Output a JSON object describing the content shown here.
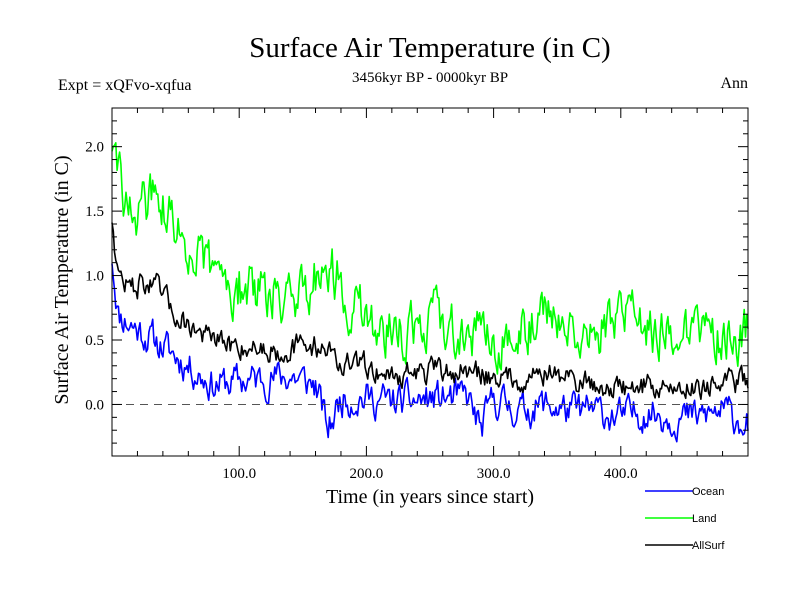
{
  "chart_data": {
    "type": "line",
    "title": "Surface Air Temperature (in C)",
    "subtitle_left": "Expt = xQFvo-xqfua",
    "subtitle_center": "3456kyr BP - 0000kyr BP",
    "subtitle_right": "Ann",
    "xlabel": "Time (in years since start)",
    "ylabel": "Surface Air Temperature (in C)",
    "xlim": [
      0,
      500
    ],
    "ylim": [
      -0.4,
      2.3
    ],
    "xticks": [
      100,
      200,
      300,
      400
    ],
    "xtick_labels": [
      "100.0",
      "200.0",
      "300.0",
      "400.0"
    ],
    "yticks": [
      0.0,
      0.5,
      1.0,
      1.5,
      2.0
    ],
    "ytick_labels": [
      "0.0",
      "0.5",
      "1.0",
      "1.5",
      "2.0"
    ],
    "reference_line": 0.0,
    "legend_position": "bottom-right-outside",
    "series": [
      {
        "name": "Ocean",
        "color": "#0000ff",
        "anchors": [
          [
            0,
            1.15
          ],
          [
            5,
            0.7
          ],
          [
            15,
            0.62
          ],
          [
            25,
            0.55
          ],
          [
            40,
            0.45
          ],
          [
            60,
            0.3
          ],
          [
            80,
            0.15
          ],
          [
            100,
            0.18
          ],
          [
            120,
            0.2
          ],
          [
            140,
            0.22
          ],
          [
            160,
            0.15
          ],
          [
            170,
            -0.2
          ],
          [
            180,
            0.05
          ],
          [
            200,
            0.05
          ],
          [
            220,
            0.02
          ],
          [
            240,
            0.03
          ],
          [
            260,
            0.05
          ],
          [
            280,
            0.05
          ],
          [
            290,
            -0.2
          ],
          [
            300,
            0.05
          ],
          [
            320,
            -0.05
          ],
          [
            340,
            0.0
          ],
          [
            360,
            -0.05
          ],
          [
            380,
            -0.05
          ],
          [
            400,
            -0.1
          ],
          [
            420,
            -0.05
          ],
          [
            440,
            -0.1
          ],
          [
            460,
            -0.1
          ],
          [
            480,
            -0.05
          ],
          [
            500,
            -0.15
          ]
        ]
      },
      {
        "name": "Land",
        "color": "#00ff00",
        "anchors": [
          [
            0,
            2.05
          ],
          [
            5,
            1.75
          ],
          [
            15,
            1.45
          ],
          [
            25,
            1.55
          ],
          [
            35,
            1.65
          ],
          [
            50,
            1.35
          ],
          [
            70,
            1.1
          ],
          [
            90,
            0.95
          ],
          [
            110,
            0.9
          ],
          [
            130,
            0.85
          ],
          [
            150,
            0.9
          ],
          [
            170,
            1.1
          ],
          [
            190,
            0.75
          ],
          [
            210,
            0.6
          ],
          [
            230,
            0.55
          ],
          [
            250,
            0.65
          ],
          [
            270,
            0.6
          ],
          [
            290,
            0.55
          ],
          [
            310,
            0.5
          ],
          [
            330,
            0.65
          ],
          [
            350,
            0.7
          ],
          [
            370,
            0.55
          ],
          [
            390,
            0.6
          ],
          [
            410,
            0.65
          ],
          [
            430,
            0.5
          ],
          [
            450,
            0.55
          ],
          [
            470,
            0.5
          ],
          [
            490,
            0.55
          ],
          [
            500,
            0.6
          ]
        ]
      },
      {
        "name": "AllSurf",
        "color": "#000000",
        "anchors": [
          [
            0,
            1.45
          ],
          [
            5,
            1.0
          ],
          [
            15,
            0.9
          ],
          [
            25,
            0.95
          ],
          [
            35,
            0.9
          ],
          [
            50,
            0.7
          ],
          [
            70,
            0.55
          ],
          [
            90,
            0.45
          ],
          [
            110,
            0.45
          ],
          [
            130,
            0.42
          ],
          [
            150,
            0.45
          ],
          [
            170,
            0.45
          ],
          [
            180,
            0.3
          ],
          [
            200,
            0.3
          ],
          [
            220,
            0.22
          ],
          [
            240,
            0.25
          ],
          [
            260,
            0.25
          ],
          [
            280,
            0.25
          ],
          [
            300,
            0.22
          ],
          [
            320,
            0.2
          ],
          [
            340,
            0.25
          ],
          [
            360,
            0.2
          ],
          [
            380,
            0.15
          ],
          [
            400,
            0.12
          ],
          [
            420,
            0.15
          ],
          [
            440,
            0.12
          ],
          [
            460,
            0.15
          ],
          [
            480,
            0.15
          ],
          [
            500,
            0.2
          ]
        ]
      }
    ]
  }
}
